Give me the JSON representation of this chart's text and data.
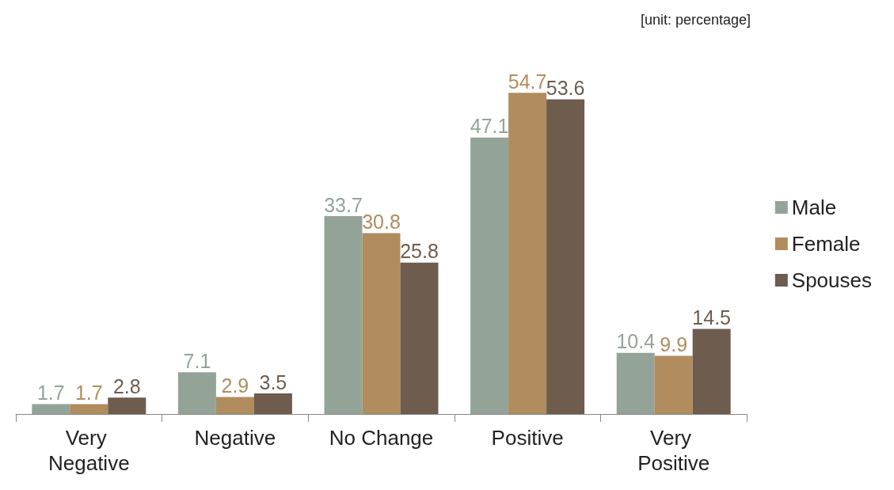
{
  "chart_data": {
    "type": "bar",
    "categories": [
      "Very Negative",
      "Negative",
      "No Change",
      "Positive",
      "Very Positive"
    ],
    "series": [
      {
        "name": "Male",
        "color": "#94a398",
        "values": [
          1.7,
          7.1,
          33.7,
          47.1,
          10.4
        ]
      },
      {
        "name": "Female",
        "color": "#b08c5e",
        "values": [
          1.7,
          2.9,
          30.8,
          54.7,
          9.9
        ]
      },
      {
        "name": "Spouses",
        "color": "#6e5c4f",
        "values": [
          2.8,
          3.5,
          25.8,
          53.6,
          14.5
        ]
      }
    ],
    "data_labels": true,
    "legend": "right",
    "annotations": [
      "[unit: percentage]"
    ]
  }
}
